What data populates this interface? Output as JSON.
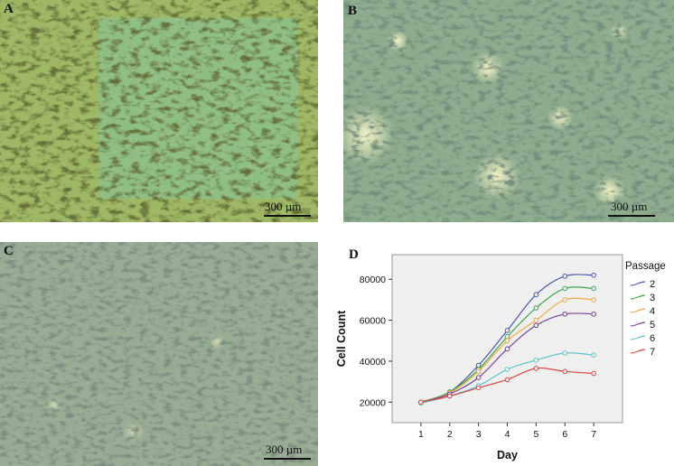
{
  "panels": {
    "a": {
      "letter": "A",
      "scale_label": "300 µm"
    },
    "b": {
      "letter": "B",
      "scale_label": "300 µm"
    },
    "c": {
      "letter": "C",
      "scale_label": "300 µm"
    },
    "d": {
      "letter": "D"
    }
  },
  "chart_data": {
    "type": "line",
    "title": "",
    "xlabel": "Day",
    "ylabel": "Cell Count",
    "x": [
      1,
      2,
      3,
      4,
      5,
      6,
      7
    ],
    "xlim": [
      0,
      8
    ],
    "ylim": [
      10000,
      92000
    ],
    "yticks": [
      20000,
      40000,
      60000,
      80000
    ],
    "grid": false,
    "background": "#efefef",
    "legend_title": "Passage",
    "legend_position": "right",
    "series": [
      {
        "name": "2",
        "color": "#4a56b4",
        "values": [
          20000,
          25000,
          38000,
          55000,
          72500,
          81500,
          82000
        ]
      },
      {
        "name": "3",
        "color": "#3aa84a",
        "values": [
          20000,
          25000,
          36000,
          52000,
          66000,
          75500,
          75500
        ]
      },
      {
        "name": "4",
        "color": "#f2a93b",
        "values": [
          20000,
          24500,
          35000,
          50000,
          60000,
          70000,
          70000
        ]
      },
      {
        "name": "5",
        "color": "#7b3f97",
        "values": [
          20000,
          24000,
          32000,
          46000,
          57500,
          63000,
          63000
        ]
      },
      {
        "name": "6",
        "color": "#5ac4cf",
        "values": [
          19500,
          23000,
          28000,
          36000,
          40500,
          44000,
          43000
        ]
      },
      {
        "name": "7",
        "color": "#e0443f",
        "values": [
          20000,
          23000,
          27000,
          31000,
          36500,
          35000,
          34000
        ]
      }
    ]
  }
}
